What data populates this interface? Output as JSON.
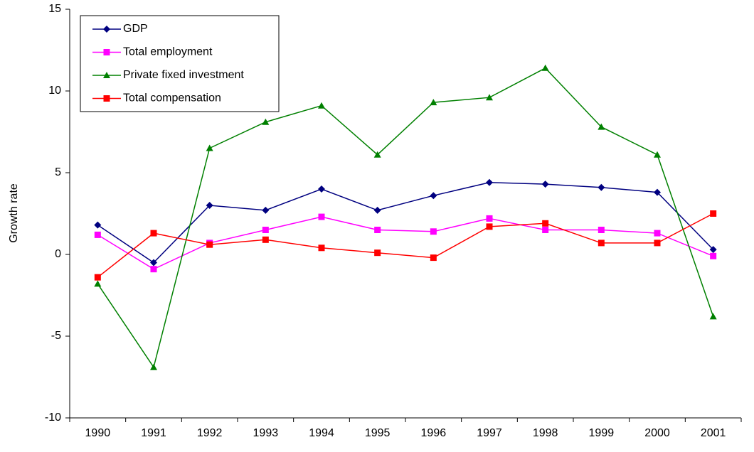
{
  "chart_data": {
    "type": "line",
    "y_label": "Growth rate",
    "categories": [
      "1990",
      "1991",
      "1992",
      "1993",
      "1994",
      "1995",
      "1996",
      "1997",
      "1998",
      "1999",
      "2000",
      "2001"
    ],
    "series": [
      {
        "name": "GDP",
        "color": "#000080",
        "marker": "diamond",
        "values": [
          1.8,
          -0.5,
          3.0,
          2.7,
          4.0,
          2.7,
          3.6,
          4.4,
          4.3,
          4.1,
          3.8,
          0.3
        ]
      },
      {
        "name": "Total employment",
        "color": "#ff00ff",
        "marker": "square",
        "values": [
          1.2,
          -0.9,
          0.7,
          1.5,
          2.3,
          1.5,
          1.4,
          2.2,
          1.5,
          1.5,
          1.3,
          -0.1
        ]
      },
      {
        "name": "Private fixed investment",
        "color": "#008000",
        "marker": "triangle",
        "values": [
          -1.8,
          -6.9,
          6.5,
          8.1,
          9.1,
          6.1,
          9.3,
          9.6,
          11.4,
          7.8,
          6.1,
          -3.8
        ]
      },
      {
        "name": "Total compensation",
        "color": "#ff0000",
        "marker": "square",
        "values": [
          -1.4,
          1.3,
          0.6,
          0.9,
          0.4,
          0.1,
          -0.2,
          1.7,
          1.9,
          0.7,
          0.7,
          2.5
        ]
      }
    ],
    "ylim": [
      -10,
      15
    ],
    "yticks": [
      -10,
      -5,
      0,
      5,
      10,
      15
    ],
    "grid": false,
    "legend": "top-left"
  }
}
